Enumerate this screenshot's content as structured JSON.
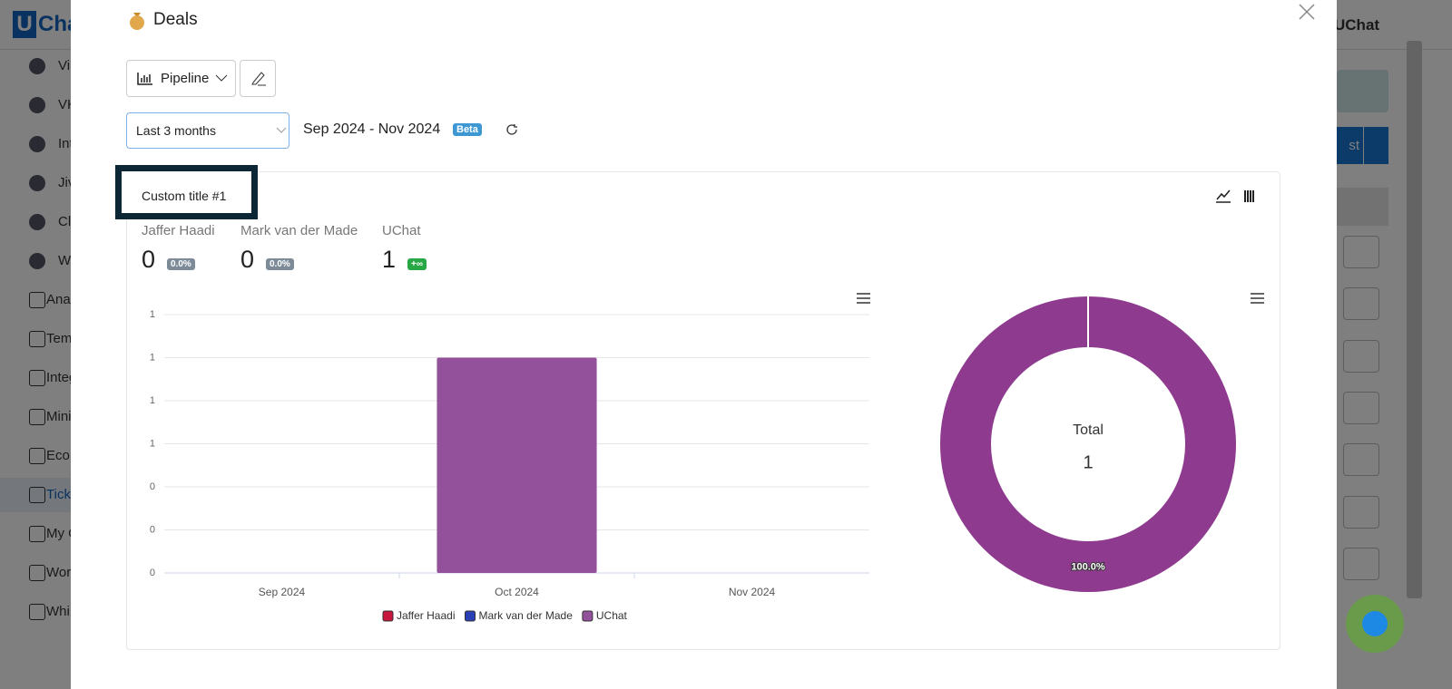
{
  "background": {
    "logo_mark": "U",
    "logo_text": "Cha",
    "user": "UChat",
    "button": "st",
    "sidebar": [
      "Vi",
      "VK",
      "Int",
      "Jiv",
      "Cl",
      "W",
      "Ana",
      "Tem",
      "Integ",
      "Mini",
      "Eco",
      "Tick",
      "My C",
      "Wor",
      "Whi"
    ]
  },
  "modal": {
    "title": "Deals",
    "pipeline": "Pipeline",
    "period": "Last 3 months",
    "date_range": "Sep 2024 - Nov 2024",
    "badge": "Beta",
    "card_title": "Custom title #1",
    "stats": [
      {
        "name": "Jaffer Haadi",
        "value": 0,
        "change": "0.0%"
      },
      {
        "name": "Mark van der Made",
        "value": 0,
        "change": "0.0%"
      },
      {
        "name": "UChat",
        "value": 1,
        "change": "+∞"
      }
    ]
  },
  "chart_data": [
    {
      "type": "bar",
      "stacked": true,
      "categories": [
        "Sep 2024",
        "Oct 2024",
        "Nov 2024"
      ],
      "series": [
        {
          "name": "Jaffer Haadi",
          "color": "#c8163f",
          "values": [
            0,
            0,
            0
          ]
        },
        {
          "name": "Mark van der Made",
          "color": "#2b3fb5",
          "values": [
            0,
            0,
            0
          ]
        },
        {
          "name": "UChat",
          "color": "#94519b",
          "values": [
            0,
            1,
            0
          ]
        }
      ],
      "ylim": [
        0,
        1.2
      ],
      "yticks": [
        0,
        {
          "value": 0.2,
          "label": "0"
        },
        {
          "value": 0.4,
          "label": "0"
        },
        {
          "value": 0.6,
          "label": "1"
        },
        {
          "value": 0.8,
          "label": "1"
        },
        1,
        {
          "value": 1.2,
          "label": "1"
        }
      ],
      "grid": true,
      "legend": "bottom"
    },
    {
      "type": "donut",
      "categories": [
        "UChat"
      ],
      "values": [
        100
      ],
      "value_labels": [
        "100.0%"
      ],
      "colors": [
        "#8e3a8e"
      ],
      "center_label": "Total",
      "center_value": 1
    }
  ]
}
